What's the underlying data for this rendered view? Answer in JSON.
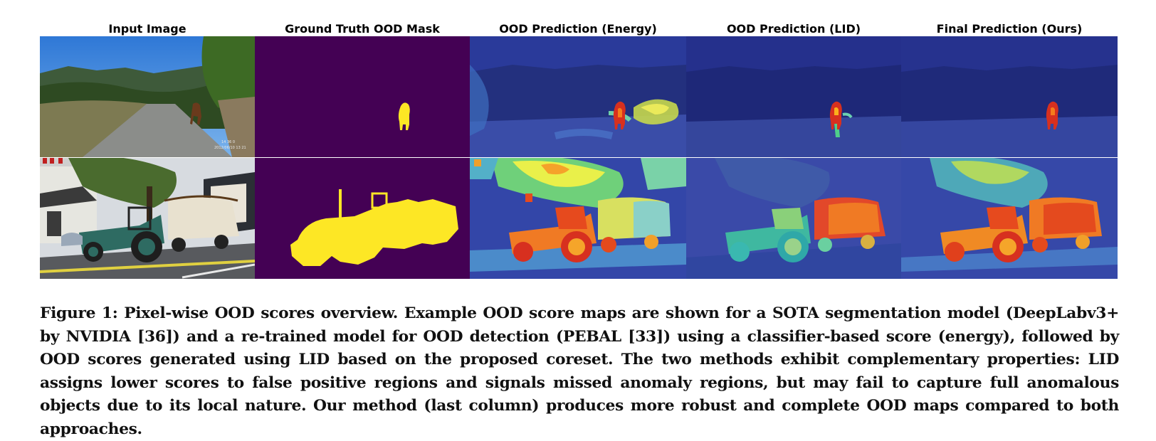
{
  "figure": {
    "columns": [
      {
        "id": "input",
        "title": "Input Image"
      },
      {
        "id": "gt",
        "title": "Ground Truth OOD Mask"
      },
      {
        "id": "energy",
        "title": "OOD Prediction (Energy)"
      },
      {
        "id": "lid",
        "title": "OOD Prediction (LID)"
      },
      {
        "id": "final",
        "title": "Final Prediction (Ours)"
      }
    ],
    "caption": "Figure 1: Pixel-wise OOD scores overview. Example OOD score maps are shown for a SOTA segmentation model (DeepLabv3+ by NVIDIA [36]) and a re-trained model for OOD detection (PEBAL [33]) using a classifier-based score (energy), followed by OOD scores generated using LID based on the proposed coreset. The two methods exhibit complementary properties: LID assigns lower scores to false positive regions and signals missed anomaly regions, but may fail to capture full anomalous objects due to its local nature. Our method (last column) produces more robust and complete OOD maps compared to both approaches."
  },
  "colors": {
    "mask_background": "#440154",
    "mask_foreground": "#fde725",
    "heatmap_base": "#1e2a8c",
    "heatmap_hot": "#d7301f"
  }
}
